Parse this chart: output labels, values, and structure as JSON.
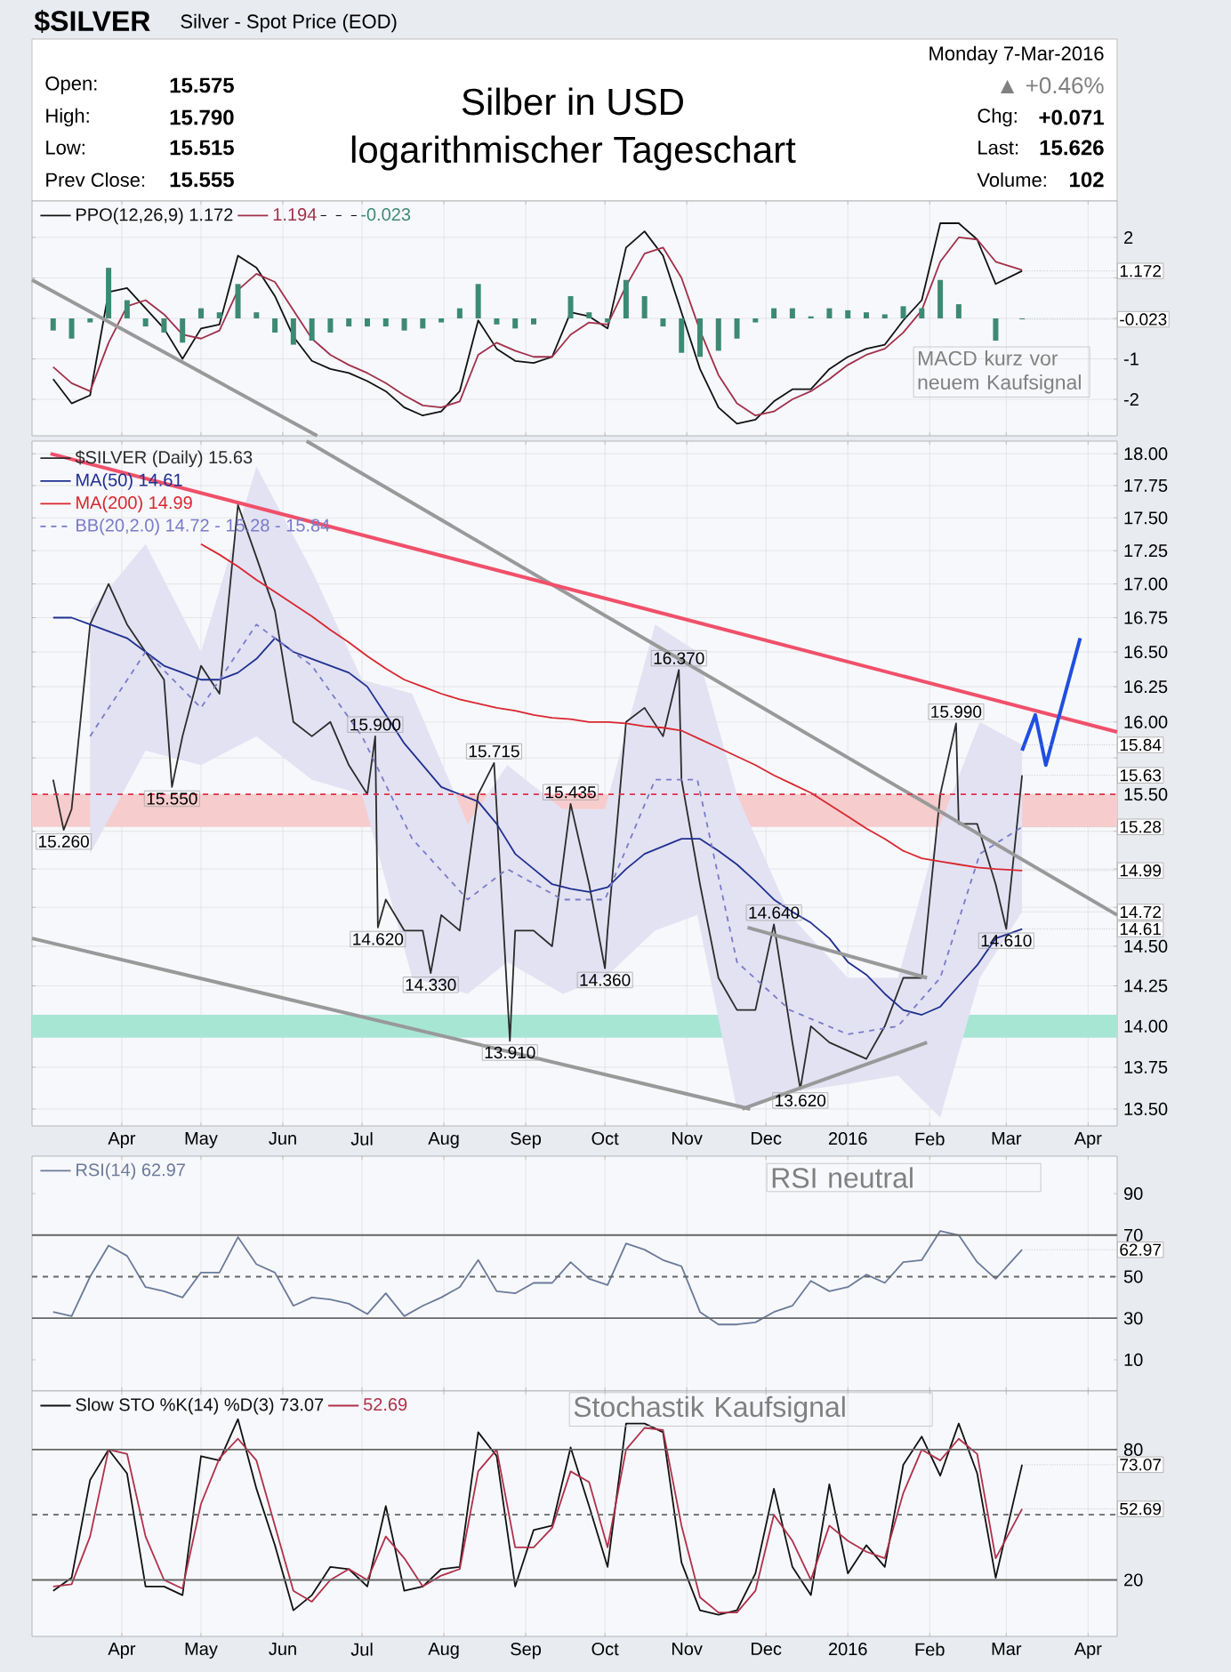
{
  "chart_data": [
    {
      "type": "other",
      "title": "Silber in USD",
      "subtitle": "logarithmischer Tageschart",
      "annotations": [
        "$SILVER",
        "Silver - Spot Price (EOD)",
        "Open:",
        "15.575",
        "High:",
        "15.790",
        "Low:",
        "15.515",
        "Prev Close:",
        "15.555",
        "Monday  7-Mar-2016",
        "▲ +0.46%",
        "Chg:",
        "+0.071",
        "Last:",
        "15.626",
        "Volume:",
        "102"
      ]
    },
    {
      "type": "line",
      "x": [
        "2015-03-06",
        "2015-03-13",
        "2015-03-20",
        "2015-03-27",
        "2015-04-03",
        "2015-04-10",
        "2015-04-17",
        "2015-04-24",
        "2015-05-01",
        "2015-05-08",
        "2015-05-15",
        "2015-05-22",
        "2015-05-29",
        "2015-06-05",
        "2015-06-12",
        "2015-06-19",
        "2015-06-26",
        "2015-07-03",
        "2015-07-10",
        "2015-07-17",
        "2015-07-24",
        "2015-07-31",
        "2015-08-07",
        "2015-08-14",
        "2015-08-21",
        "2015-08-28",
        "2015-09-04",
        "2015-09-11",
        "2015-09-18",
        "2015-09-25",
        "2015-10-02",
        "2015-10-09",
        "2015-10-16",
        "2015-10-23",
        "2015-10-30",
        "2015-11-06",
        "2015-11-13",
        "2015-11-20",
        "2015-11-27",
        "2015-12-04",
        "2015-12-11",
        "2015-12-18",
        "2015-12-25",
        "2016-01-01",
        "2016-01-08",
        "2016-01-15",
        "2016-01-22",
        "2016-01-29",
        "2016-02-05",
        "2016-02-12",
        "2016-02-19",
        "2016-02-26",
        "2016-03-07"
      ],
      "xlim": [
        "2015-02-26",
        "2016-04-12"
      ],
      "xticks": [
        {
          "value": "2015-04-01",
          "label": null
        },
        {
          "value": "2015-05-01",
          "label": null
        },
        {
          "value": "2015-06-01",
          "label": null
        },
        {
          "value": "2015-07-01",
          "label": null
        },
        {
          "value": "2015-08-01",
          "label": null
        },
        {
          "value": "2015-09-01",
          "label": null
        },
        {
          "value": "2015-10-01",
          "label": null
        },
        {
          "value": "2015-11-01",
          "label": null
        },
        {
          "value": "2015-12-01",
          "label": null
        },
        {
          "value": "2016-01-01",
          "label": null
        },
        {
          "value": "2016-02-01",
          "label": null
        },
        {
          "value": "2016-03-01",
          "label": null
        },
        {
          "value": "2016-04-01",
          "label": null
        }
      ],
      "ylim": [
        -2.9,
        2.9
      ],
      "yticks": [
        -2,
        -1,
        {
          "value": 0,
          "label": null
        },
        {
          "value": 1,
          "label": null
        },
        2
      ],
      "tick_labels": "y",
      "grid": true,
      "legend": "top left",
      "series": [
        {
          "name": "PPO(12,26,9) 1.172",
          "color": "#111111",
          "values": [
            -1.5,
            -2.1,
            -1.9,
            0.65,
            0.75,
            0.25,
            -0.25,
            -1.0,
            -0.25,
            -0.15,
            1.55,
            1.25,
            0.55,
            -0.45,
            -1.05,
            -1.25,
            -1.35,
            -1.55,
            -1.8,
            -2.2,
            -2.4,
            -2.3,
            -1.8,
            -0.05,
            -0.75,
            -1.05,
            -1.1,
            -0.95,
            0.15,
            0.05,
            -0.25,
            1.75,
            2.15,
            1.55,
            0.15,
            -1.25,
            -2.2,
            -2.6,
            -2.5,
            -2.05,
            -1.75,
            -1.75,
            -1.25,
            -0.95,
            -0.75,
            -0.65,
            -0.05,
            0.45,
            2.35,
            2.35,
            1.95,
            0.85,
            1.172
          ]
        },
        {
          "name": "1.194",
          "color": "#a0304a",
          "values": [
            -1.2,
            -1.6,
            -1.8,
            -0.6,
            0.3,
            0.45,
            0.1,
            -0.4,
            -0.5,
            -0.3,
            0.7,
            1.1,
            0.9,
            0.2,
            -0.5,
            -0.9,
            -1.15,
            -1.35,
            -1.6,
            -1.9,
            -2.15,
            -2.2,
            -2.05,
            -0.9,
            -0.6,
            -0.8,
            -0.95,
            -0.95,
            -0.4,
            -0.1,
            -0.15,
            0.8,
            1.6,
            1.75,
            1.0,
            -0.3,
            -1.4,
            -2.1,
            -2.4,
            -2.3,
            -2.0,
            -1.8,
            -1.5,
            -1.15,
            -0.9,
            -0.75,
            -0.35,
            0.2,
            1.4,
            2.0,
            1.95,
            1.4,
            1.194
          ]
        },
        {
          "name": "-0.023",
          "type": "bar",
          "color": "#3d8a72",
          "values": [
            -0.3,
            -0.5,
            -0.1,
            1.25,
            0.45,
            -0.2,
            -0.35,
            -0.6,
            0.25,
            0.15,
            0.85,
            0.15,
            -0.35,
            -0.65,
            -0.55,
            -0.35,
            -0.2,
            -0.2,
            -0.2,
            -0.3,
            -0.25,
            -0.1,
            0.25,
            0.85,
            -0.15,
            -0.25,
            -0.15,
            0.0,
            0.55,
            0.15,
            -0.1,
            0.95,
            0.55,
            -0.2,
            -0.85,
            -0.95,
            -0.8,
            -0.5,
            -0.1,
            0.25,
            0.25,
            0.05,
            0.25,
            0.2,
            0.15,
            0.1,
            0.3,
            0.25,
            0.95,
            0.35,
            0.0,
            -0.55,
            -0.023
          ]
        },
        {
          "type": "line",
          "color": "#999999",
          "x": [
            "2015-02-26",
            "2015-06-14"
          ],
          "values": [
            0.95,
            -2.9
          ]
        }
      ],
      "annotations": [
        {
          "text": "1.172",
          "x": "2016-03-07",
          "y": 1.172
        },
        {
          "text": "-0.023",
          "x": "2016-03-07",
          "y": -0.023
        },
        "MACD kurz vor neuem Kaufsignal"
      ]
    },
    {
      "type": "line",
      "log": true,
      "x": [
        "2015-03-06",
        "2015-03-13",
        "2015-03-20",
        "2015-03-27",
        "2015-04-03",
        "2015-04-10",
        "2015-04-17",
        "2015-04-24",
        "2015-05-01",
        "2015-05-08",
        "2015-05-15",
        "2015-05-22",
        "2015-05-29",
        "2015-06-05",
        "2015-06-12",
        "2015-06-19",
        "2015-06-26",
        "2015-07-03",
        "2015-07-10",
        "2015-07-17",
        "2015-07-24",
        "2015-07-31",
        "2015-08-07",
        "2015-08-14",
        "2015-08-21",
        "2015-08-28",
        "2015-09-04",
        "2015-09-11",
        "2015-09-18",
        "2015-09-25",
        "2015-10-02",
        "2015-10-09",
        "2015-10-16",
        "2015-10-23",
        "2015-10-30",
        "2015-11-06",
        "2015-11-13",
        "2015-11-20",
        "2015-11-27",
        "2015-12-04",
        "2015-12-11",
        "2015-12-18",
        "2015-12-25",
        "2016-01-01",
        "2016-01-08",
        "2016-01-15",
        "2016-01-22",
        "2016-01-29",
        "2016-02-05",
        "2016-02-12",
        "2016-02-19",
        "2016-02-26",
        "2016-03-07"
      ],
      "xlim": [
        "2015-02-26",
        "2016-04-12"
      ],
      "xticks": [
        {
          "value": "2015-04-01",
          "label": "Apr"
        },
        {
          "value": "2015-05-01",
          "label": "May"
        },
        {
          "value": "2015-06-01",
          "label": "Jun"
        },
        {
          "value": "2015-07-01",
          "label": "Jul"
        },
        {
          "value": "2015-08-01",
          "label": "Aug"
        },
        {
          "value": "2015-09-01",
          "label": "Sep"
        },
        {
          "value": "2015-10-01",
          "label": "Oct"
        },
        {
          "value": "2015-11-01",
          "label": "Nov"
        },
        {
          "value": "2015-12-01",
          "label": "Dec"
        },
        {
          "value": "2016-01-01",
          "label": "2016"
        },
        {
          "value": "2016-02-01",
          "label": "Feb"
        },
        {
          "value": "2016-03-01",
          "label": "Mar"
        },
        {
          "value": "2016-04-01",
          "label": "Apr"
        }
      ],
      "ylim": [
        13.4,
        18.1
      ],
      "yticks": [
        {
          "value": 13.5,
          "label": "13.50"
        },
        {
          "value": 13.75,
          "label": "13.75"
        },
        {
          "value": 14.0,
          "label": "14.00"
        },
        {
          "value": 14.25,
          "label": "14.25"
        },
        {
          "value": 14.5,
          "label": "14.50"
        },
        {
          "value": 14.75,
          "label": null
        },
        {
          "value": 15.0,
          "label": null
        },
        {
          "value": 15.25,
          "label": null
        },
        {
          "value": 15.5,
          "label": "15.50"
        },
        {
          "value": 15.75,
          "label": null
        },
        {
          "value": 16.0,
          "label": "16.00"
        },
        {
          "value": 16.25,
          "label": "16.25"
        },
        {
          "value": 16.5,
          "label": "16.50"
        },
        {
          "value": 16.75,
          "label": "16.75"
        },
        {
          "value": 17.0,
          "label": "17.00"
        },
        {
          "value": 17.25,
          "label": "17.25"
        },
        {
          "value": 17.5,
          "label": "17.50"
        },
        {
          "value": 17.75,
          "label": "17.75"
        },
        {
          "value": 18.0,
          "label": "18.00"
        }
      ],
      "grid": true,
      "legend": "top left",
      "bands": [
        {
          "axis": "y",
          "from": 13.93,
          "to": 14.07,
          "color": "#a8e6d4"
        },
        {
          "axis": "y",
          "from": 15.28,
          "to": 15.5,
          "color": "#f6cccc"
        }
      ],
      "ref_lines": [
        {
          "axis": "y",
          "value": 15.5,
          "color": "#e0304a",
          "line_style": "dashed"
        }
      ],
      "series": [
        {
          "name": "$SILVER (Daily) 15.63",
          "color": "#2b2b2b",
          "x": [
            "2015-03-06",
            "2015-03-10",
            "2015-03-13",
            "2015-03-20",
            "2015-03-27",
            "2015-04-03",
            "2015-04-10",
            "2015-04-17",
            "2015-04-20",
            "2015-04-24",
            "2015-05-01",
            "2015-05-08",
            "2015-05-15",
            "2015-05-22",
            "2015-05-29",
            "2015-06-05",
            "2015-06-12",
            "2015-06-19",
            "2015-06-26",
            "2015-07-03",
            "2015-07-06",
            "2015-07-07",
            "2015-07-10",
            "2015-07-17",
            "2015-07-24",
            "2015-07-27",
            "2015-07-31",
            "2015-08-07",
            "2015-08-14",
            "2015-08-20",
            "2015-08-21",
            "2015-08-26",
            "2015-08-28",
            "2015-09-04",
            "2015-09-11",
            "2015-09-18",
            "2015-09-25",
            "2015-10-01",
            "2015-10-02",
            "2015-10-09",
            "2015-10-16",
            "2015-10-23",
            "2015-10-29",
            "2015-10-30",
            "2015-11-06",
            "2015-11-13",
            "2015-11-20",
            "2015-11-27",
            "2015-12-04",
            "2015-12-11",
            "2015-12-14",
            "2015-12-18",
            "2015-12-25",
            "2016-01-01",
            "2016-01-08",
            "2016-01-15",
            "2016-01-22",
            "2016-01-29",
            "2016-02-05",
            "2016-02-11",
            "2016-02-12",
            "2016-02-19",
            "2016-02-26",
            "2016-03-01",
            "2016-03-07"
          ],
          "values": [
            15.6,
            15.26,
            15.4,
            16.7,
            17.0,
            16.7,
            16.5,
            16.3,
            15.55,
            15.9,
            16.4,
            16.2,
            17.6,
            17.2,
            16.8,
            16.0,
            15.9,
            16.0,
            15.7,
            15.5,
            15.9,
            14.62,
            14.8,
            14.6,
            14.6,
            14.33,
            14.7,
            14.6,
            15.5,
            15.715,
            15.4,
            13.91,
            14.6,
            14.6,
            14.5,
            15.435,
            14.9,
            14.36,
            14.6,
            16.0,
            16.1,
            15.9,
            16.37,
            15.6,
            14.9,
            14.3,
            14.1,
            14.1,
            14.64,
            13.9,
            13.62,
            14.0,
            13.9,
            13.85,
            13.8,
            14.0,
            14.3,
            14.3,
            15.5,
            15.99,
            15.3,
            15.3,
            14.9,
            14.61,
            15.63
          ]
        },
        {
          "name": "MA(50) 14.61",
          "color": "#1f2f8f",
          "values": [
            16.75,
            16.75,
            16.7,
            16.65,
            16.6,
            16.5,
            16.4,
            16.35,
            16.3,
            16.3,
            16.35,
            16.45,
            16.6,
            16.5,
            16.45,
            16.4,
            16.35,
            16.25,
            16.05,
            15.85,
            15.7,
            15.55,
            15.5,
            15.45,
            15.3,
            15.1,
            15.0,
            14.9,
            14.87,
            14.85,
            14.88,
            15.0,
            15.1,
            15.15,
            15.2,
            15.2,
            15.12,
            15.03,
            14.92,
            14.8,
            14.72,
            14.65,
            14.55,
            14.4,
            14.32,
            14.2,
            14.1,
            14.07,
            14.12,
            14.25,
            14.38,
            14.55,
            14.61
          ]
        },
        {
          "name": "MA(200) 14.99",
          "color": "#d9262e",
          "values": [
            null,
            null,
            null,
            null,
            null,
            null,
            null,
            null,
            17.3,
            17.22,
            17.13,
            17.03,
            16.94,
            16.85,
            16.76,
            16.66,
            16.57,
            16.47,
            16.38,
            16.3,
            16.25,
            16.2,
            16.16,
            16.13,
            16.1,
            16.08,
            16.05,
            16.03,
            16.02,
            16.0,
            16.0,
            15.99,
            15.97,
            15.96,
            15.94,
            15.88,
            15.82,
            15.76,
            15.7,
            15.63,
            15.57,
            15.51,
            15.43,
            15.35,
            15.27,
            15.2,
            15.12,
            15.07,
            15.05,
            15.03,
            15.01,
            15.0,
            14.99
          ]
        },
        {
          "name": "BB(20,2.0) 14.72 - 15.28 - 15.84",
          "color": "#7a7ac8",
          "line_style": "dashed",
          "x": [
            "2015-03-20",
            "2015-04-10",
            "2015-05-01",
            "2015-05-22",
            "2015-06-12",
            "2015-07-01",
            "2015-07-20",
            "2015-08-10",
            "2015-08-25",
            "2015-09-15",
            "2015-10-01",
            "2015-10-20",
            "2015-11-05",
            "2015-11-20",
            "2015-12-10",
            "2016-01-01",
            "2016-01-20",
            "2016-02-05",
            "2016-02-20",
            "2016-03-07"
          ],
          "values": [
            15.9,
            16.5,
            16.1,
            16.7,
            16.4,
            15.9,
            15.2,
            14.8,
            15.0,
            14.8,
            14.8,
            15.6,
            15.6,
            14.4,
            14.1,
            13.95,
            14.0,
            14.3,
            15.1,
            15.28
          ],
          "lower": [
            15.1,
            15.8,
            15.7,
            15.9,
            15.6,
            15.5,
            14.3,
            14.2,
            14.4,
            14.2,
            14.3,
            14.6,
            14.7,
            13.5,
            13.6,
            13.65,
            13.7,
            13.45,
            14.3,
            14.72
          ],
          "upper": [
            16.8,
            17.3,
            16.5,
            17.9,
            17.1,
            16.3,
            16.2,
            15.3,
            15.7,
            15.4,
            15.4,
            16.7,
            16.5,
            15.5,
            14.7,
            14.3,
            14.3,
            15.3,
            16.0,
            15.84
          ]
        },
        {
          "type": "line",
          "color": "#999999",
          "x": [
            "2015-06-10",
            "2016-04-12"
          ],
          "values": [
            18.1,
            14.7
          ]
        },
        {
          "type": "line",
          "color": "#999999",
          "x": [
            "2015-02-26",
            "2015-11-25"
          ],
          "values": [
            14.55,
            13.5
          ]
        },
        {
          "type": "line",
          "color": "#999999",
          "x": [
            "2015-11-24",
            "2016-01-31"
          ],
          "values": [
            14.62,
            14.3
          ]
        },
        {
          "type": "line",
          "color": "#999999",
          "x": [
            "2015-11-22",
            "2016-01-31"
          ],
          "values": [
            13.5,
            13.9
          ]
        },
        {
          "type": "line",
          "color": "#f0506a",
          "x": [
            "2015-03-05",
            "2016-04-12"
          ],
          "values": [
            18.0,
            15.93
          ]
        },
        {
          "type": "line",
          "color": "#1f4fe0",
          "x": [
            "2016-03-07",
            "2016-03-12",
            "2016-03-16",
            "2016-03-29"
          ],
          "values": [
            15.8,
            16.05,
            15.7,
            16.6
          ]
        }
      ],
      "annotations": [
        {
          "text": "15.260",
          "x": "2015-03-10",
          "y": 15.26
        },
        {
          "text": "15.550",
          "x": "2015-04-20",
          "y": 15.55
        },
        {
          "text": "15.900",
          "x": "2015-07-06",
          "y": 15.9
        },
        {
          "text": "14.620",
          "x": "2015-07-07",
          "y": 14.62
        },
        {
          "text": "14.330",
          "x": "2015-07-27",
          "y": 14.33
        },
        {
          "text": "15.715",
          "x": "2015-08-20",
          "y": 15.715
        },
        {
          "text": "13.910",
          "x": "2015-08-26",
          "y": 13.91
        },
        {
          "text": "15.435",
          "x": "2015-09-18",
          "y": 15.435
        },
        {
          "text": "14.360",
          "x": "2015-10-01",
          "y": 14.36
        },
        {
          "text": "16.370",
          "x": "2015-10-29",
          "y": 16.37
        },
        {
          "text": "14.640",
          "x": "2015-12-04",
          "y": 14.64
        },
        {
          "text": "13.620",
          "x": "2015-12-14",
          "y": 13.62
        },
        {
          "text": "15.990",
          "x": "2016-02-11",
          "y": 15.99
        },
        {
          "text": "14.610",
          "x": "2016-03-01",
          "y": 14.61
        },
        {
          "text": "15.84",
          "x": "2016-03-07",
          "y": 15.84
        },
        {
          "text": "15.63",
          "x": "2016-03-07",
          "y": 15.63
        },
        {
          "text": "15.28",
          "x": "2016-03-07",
          "y": 15.28
        },
        {
          "text": "14.99",
          "x": "2016-03-07",
          "y": 14.99
        },
        {
          "text": "14.72",
          "x": "2016-03-07",
          "y": 14.72
        },
        {
          "text": "14.61",
          "x": "2016-03-07",
          "y": 14.61
        }
      ]
    },
    {
      "type": "line",
      "x": [
        "2015-03-06",
        "2015-03-13",
        "2015-03-20",
        "2015-03-27",
        "2015-04-03",
        "2015-04-10",
        "2015-04-17",
        "2015-04-24",
        "2015-05-01",
        "2015-05-08",
        "2015-05-15",
        "2015-05-22",
        "2015-05-29",
        "2015-06-05",
        "2015-06-12",
        "2015-06-19",
        "2015-06-26",
        "2015-07-03",
        "2015-07-10",
        "2015-07-17",
        "2015-07-24",
        "2015-07-31",
        "2015-08-07",
        "2015-08-14",
        "2015-08-21",
        "2015-08-28",
        "2015-09-04",
        "2015-09-11",
        "2015-09-18",
        "2015-09-25",
        "2015-10-02",
        "2015-10-09",
        "2015-10-16",
        "2015-10-23",
        "2015-10-30",
        "2015-11-06",
        "2015-11-13",
        "2015-11-20",
        "2015-11-27",
        "2015-12-04",
        "2015-12-11",
        "2015-12-18",
        "2015-12-25",
        "2016-01-01",
        "2016-01-08",
        "2016-01-15",
        "2016-01-22",
        "2016-01-29",
        "2016-02-05",
        "2016-02-12",
        "2016-02-19",
        "2016-02-26",
        "2016-03-07"
      ],
      "xlim": [
        "2015-02-26",
        "2016-04-12"
      ],
      "xticks": [
        {
          "value": "2015-04-01",
          "label": null
        },
        {
          "value": "2015-05-01",
          "label": null
        },
        {
          "value": "2015-06-01",
          "label": null
        },
        {
          "value": "2015-07-01",
          "label": null
        },
        {
          "value": "2015-08-01",
          "label": null
        },
        {
          "value": "2015-09-01",
          "label": null
        },
        {
          "value": "2015-10-01",
          "label": null
        },
        {
          "value": "2015-11-01",
          "label": null
        },
        {
          "value": "2015-12-01",
          "label": null
        },
        {
          "value": "2016-01-01",
          "label": null
        },
        {
          "value": "2016-02-01",
          "label": null
        },
        {
          "value": "2016-03-01",
          "label": null
        },
        {
          "value": "2016-04-01",
          "label": null
        }
      ],
      "ylim": [
        -5,
        108
      ],
      "yticks": [
        10,
        30,
        50,
        70,
        90
      ],
      "tick_labels": "y",
      "grid": "x",
      "legend": "top left",
      "ref_lines": [
        {
          "axis": "y",
          "value": 30,
          "color": "#666666",
          "line_style": "solid"
        },
        {
          "axis": "y",
          "value": 50,
          "color": "#666666",
          "line_style": "dashed"
        },
        {
          "axis": "y",
          "value": 70,
          "color": "#666666",
          "line_style": "solid"
        }
      ],
      "series": [
        {
          "name": "RSI(14) 62.97",
          "color": "#6b7a99",
          "values": [
            33,
            31,
            50,
            65,
            60,
            45,
            43,
            40,
            52,
            52,
            69,
            56,
            52,
            36,
            40,
            39,
            37,
            32,
            42,
            31,
            36,
            40,
            45,
            58,
            43,
            42,
            47,
            47,
            57,
            49,
            46,
            66,
            63,
            58,
            55,
            33,
            27,
            27,
            28,
            33,
            36,
            48,
            43,
            45,
            51,
            47,
            57,
            58,
            72,
            70,
            57,
            49,
            62.97
          ]
        }
      ],
      "annotations": [
        {
          "text": "62.97",
          "x": "2016-03-07",
          "y": 62.97
        },
        "RSI neutral"
      ]
    },
    {
      "type": "line",
      "x": [
        "2015-03-06",
        "2015-03-13",
        "2015-03-20",
        "2015-03-27",
        "2015-04-03",
        "2015-04-10",
        "2015-04-17",
        "2015-04-24",
        "2015-05-01",
        "2015-05-08",
        "2015-05-15",
        "2015-05-22",
        "2015-05-29",
        "2015-06-05",
        "2015-06-12",
        "2015-06-19",
        "2015-06-26",
        "2015-07-03",
        "2015-07-10",
        "2015-07-17",
        "2015-07-24",
        "2015-07-31",
        "2015-08-07",
        "2015-08-14",
        "2015-08-21",
        "2015-08-28",
        "2015-09-04",
        "2015-09-11",
        "2015-09-18",
        "2015-09-25",
        "2015-10-02",
        "2015-10-09",
        "2015-10-16",
        "2015-10-23",
        "2015-10-30",
        "2015-11-06",
        "2015-11-13",
        "2015-11-20",
        "2015-11-27",
        "2015-12-04",
        "2015-12-11",
        "2015-12-18",
        "2015-12-25",
        "2016-01-01",
        "2016-01-08",
        "2016-01-15",
        "2016-01-22",
        "2016-01-29",
        "2016-02-05",
        "2016-02-12",
        "2016-02-19",
        "2016-02-26",
        "2016-03-07"
      ],
      "xlim": [
        "2015-02-26",
        "2016-04-12"
      ],
      "xticks": [
        {
          "value": "2015-04-01",
          "label": "Apr"
        },
        {
          "value": "2015-05-01",
          "label": "May"
        },
        {
          "value": "2015-06-01",
          "label": "Jun"
        },
        {
          "value": "2015-07-01",
          "label": "Jul"
        },
        {
          "value": "2015-08-01",
          "label": "Aug"
        },
        {
          "value": "2015-09-01",
          "label": "Sep"
        },
        {
          "value": "2015-10-01",
          "label": "Oct"
        },
        {
          "value": "2015-11-01",
          "label": "Nov"
        },
        {
          "value": "2015-12-01",
          "label": "Dec"
        },
        {
          "value": "2016-01-01",
          "label": "2016"
        },
        {
          "value": "2016-02-01",
          "label": "Feb"
        },
        {
          "value": "2016-03-01",
          "label": "Mar"
        },
        {
          "value": "2016-04-01",
          "label": "Apr"
        }
      ],
      "ylim": [
        -6,
        107
      ],
      "yticks": [
        20,
        80
      ],
      "grid": true,
      "legend": "top left",
      "ref_lines": [
        {
          "axis": "y",
          "value": 20,
          "color": "#666666",
          "line_style": "solid"
        },
        {
          "axis": "y",
          "value": 50,
          "color": "#666666",
          "line_style": "dashed"
        },
        {
          "axis": "y",
          "value": 80,
          "color": "#666666",
          "line_style": "solid"
        }
      ],
      "series": [
        {
          "name": "Slow STO %K(14) %D(3) 73.07",
          "color": "#111111",
          "values": [
            15,
            21,
            66,
            80,
            69,
            17,
            17,
            13,
            77,
            75,
            94,
            62,
            36,
            6,
            13,
            26,
            25,
            17,
            54,
            15,
            17,
            25,
            26,
            88,
            77,
            17,
            43,
            45,
            81,
            54,
            26,
            92,
            92,
            88,
            28,
            6,
            4,
            6,
            23,
            62,
            26,
            13,
            64,
            23,
            36,
            26,
            73,
            86,
            68,
            92,
            69,
            21,
            73.07
          ]
        },
        {
          "name": "52.69",
          "color": "#b0304a",
          "values": [
            17,
            18,
            40,
            80,
            78,
            40,
            20,
            16,
            55,
            76,
            85,
            75,
            45,
            15,
            10,
            20,
            25,
            20,
            40,
            30,
            17,
            22,
            25,
            70,
            80,
            35,
            35,
            44,
            70,
            65,
            35,
            80,
            90,
            89,
            45,
            12,
            5,
            5,
            15,
            50,
            38,
            20,
            45,
            38,
            33,
            30,
            60,
            80,
            75,
            85,
            78,
            30,
            52.69
          ]
        }
      ],
      "annotations": [
        {
          "text": "73.07",
          "x": "2016-03-07",
          "y": 73.07
        },
        {
          "text": "52.69",
          "x": "2016-03-07",
          "y": 52.69
        },
        "Stochastik Kaufsignal"
      ]
    }
  ]
}
